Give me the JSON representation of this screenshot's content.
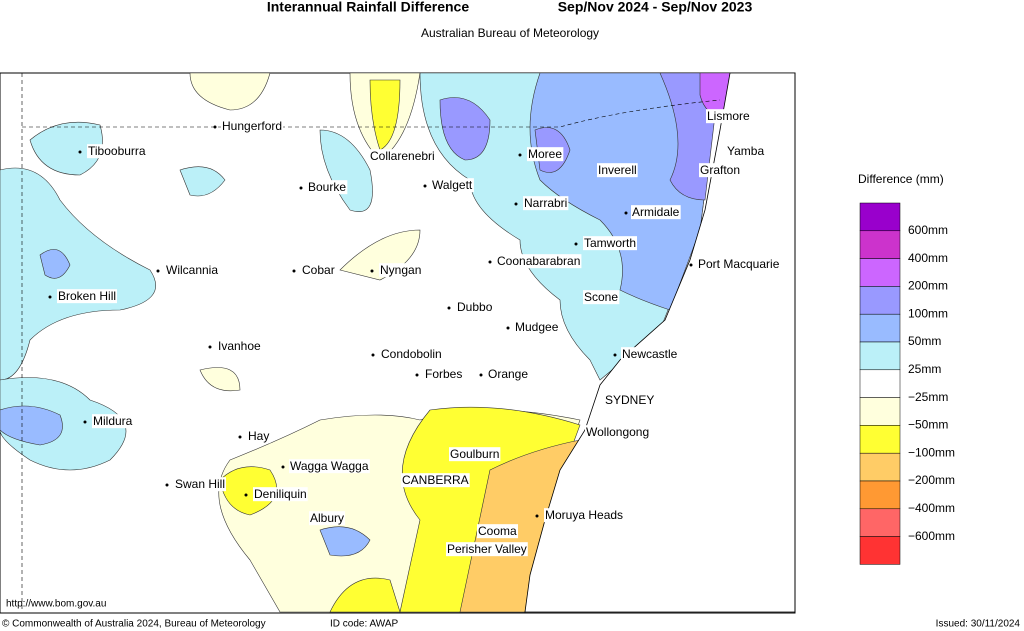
{
  "header": {
    "title": "Interannual Rainfall Difference",
    "period": "Sep/Nov 2024 - Sep/Nov 2023",
    "subtitle": "Australian Bureau of Meteorology"
  },
  "map": {
    "places": [
      "Hungerford",
      "Tibooburra",
      "Collarenebri",
      "Moree",
      "Inverell",
      "Yamba",
      "Lismore",
      "Grafton",
      "Bourke",
      "Walgett",
      "Narrabri",
      "Armidale",
      "Tamworth",
      "Coonabarabran",
      "Port Macquarie",
      "Wilcannia",
      "Cobar",
      "Nyngan",
      "Broken Hill",
      "Scone",
      "Dubbo",
      "Mudgee",
      "Ivanhoe",
      "Condobolin",
      "Newcastle",
      "Forbes",
      "Orange",
      "SYDNEY",
      "Mildura",
      "Hay",
      "Wollongong",
      "Goulburn",
      "Wagga Wagga",
      "Swan Hill",
      "CANBERRA",
      "Deniliquin",
      "Albury",
      "Moruya Heads",
      "Cooma",
      "Perisher Valley"
    ],
    "url": "http://www.bom.gov.au"
  },
  "legend": {
    "title": "Difference (mm)",
    "colors": [
      "#9900cc",
      "#cc33cc",
      "#cc66ff",
      "#9999ff",
      "#99bbff",
      "#bbf0f8",
      "#ffffff",
      "#ffffdd",
      "#ffff33",
      "#ffcc66",
      "#ff9933",
      "#ff6666",
      "#ff3333"
    ],
    "labels": [
      "600mm",
      "400mm",
      "200mm",
      "100mm",
      "50mm",
      "25mm",
      "−25mm",
      "−50mm",
      "−100mm",
      "−200mm",
      "−400mm",
      "−600mm"
    ]
  },
  "footer": {
    "copyright": "© Commonwealth of Australia 2024, Bureau of Meteorology",
    "id_code": "ID code: AWAP",
    "issued": "Issued: 30/11/2024"
  }
}
